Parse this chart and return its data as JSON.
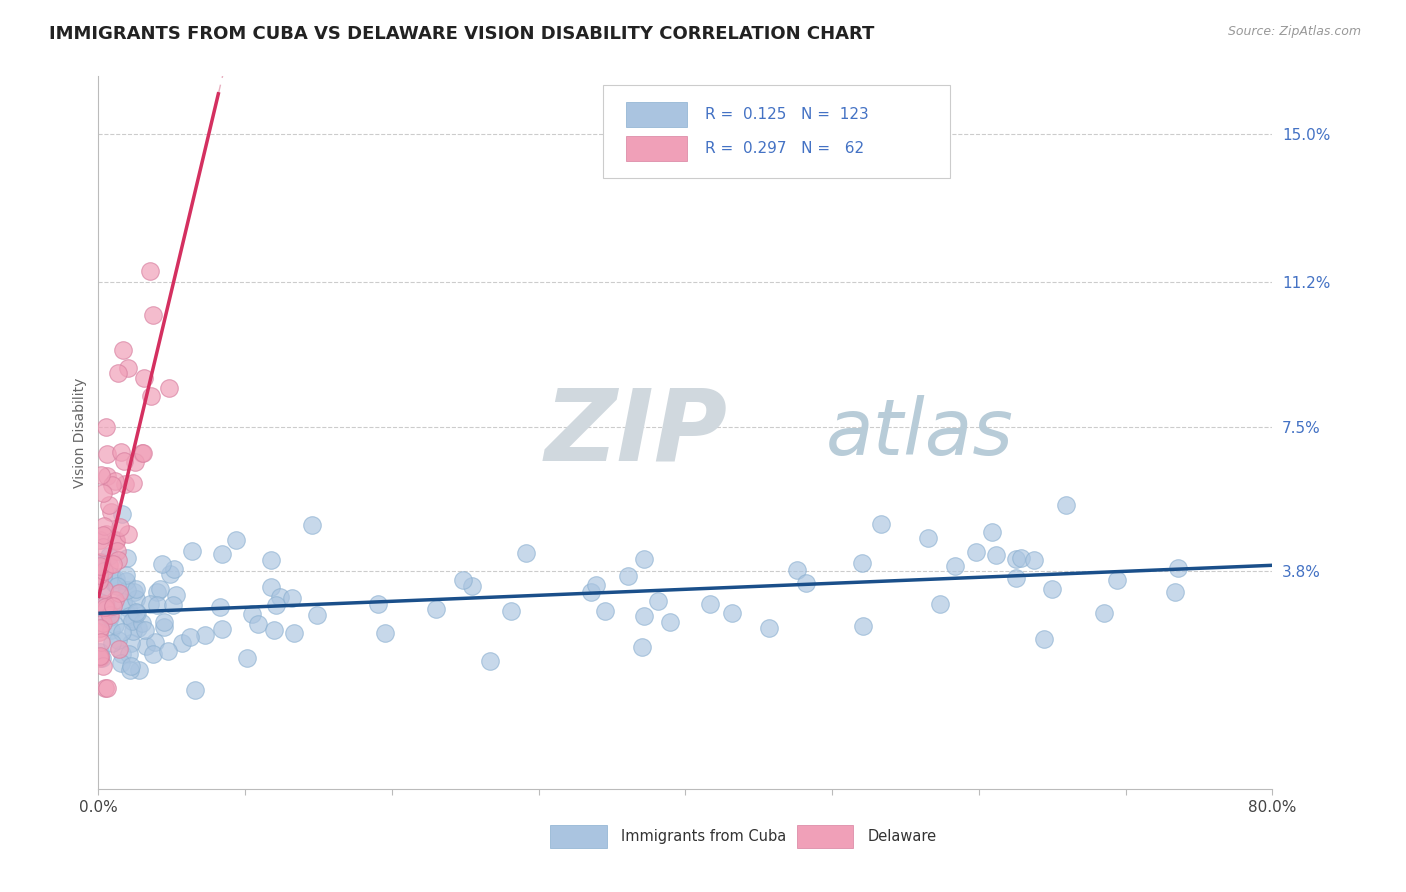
{
  "title": "IMMIGRANTS FROM CUBA VS DELAWARE VISION DISABILITY CORRELATION CHART",
  "source_text": "Source: ZipAtlas.com",
  "ylabel": "Vision Disability",
  "legend_label_1": "Immigrants from Cuba",
  "legend_label_2": "Delaware",
  "r1": 0.125,
  "n1": 123,
  "r2": 0.297,
  "n2": 62,
  "color1": "#aac4e0",
  "color1_line": "#1a4f8a",
  "color2": "#f0a0b8",
  "color2_line": "#d43060",
  "color2_dash": "#e8a0b8",
  "xlim": [
    0.0,
    0.8
  ],
  "ylim": [
    -0.018,
    0.165
  ],
  "ytick_positions": [
    0.038,
    0.075,
    0.112,
    0.15
  ],
  "ytick_labels": [
    "3.8%",
    "7.5%",
    "11.2%",
    "15.0%"
  ],
  "title_fontsize": 13,
  "axis_label_fontsize": 10,
  "tick_fontsize": 11,
  "legend_fontsize": 11,
  "watermark_zip": "ZIP",
  "watermark_atlas": "atlas",
  "watermark_color_zip": "#c8d4dc",
  "watermark_color_atlas": "#a0b8cc"
}
